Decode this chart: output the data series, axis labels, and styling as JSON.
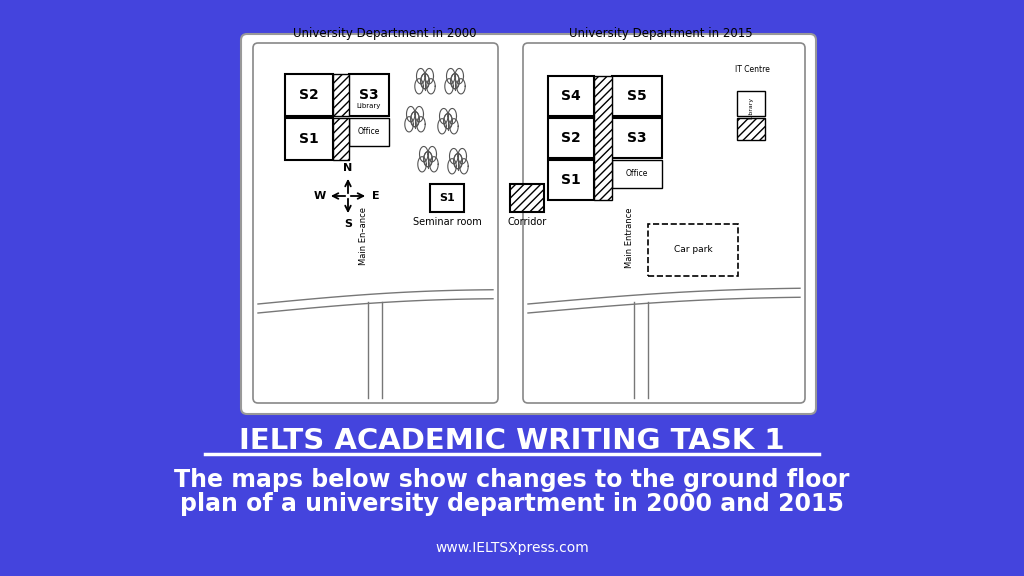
{
  "bg_blue": "#4444dd",
  "title1": "University Department in 2000",
  "title2": "University Department in 2015",
  "main_title": "IELTS ACADEMIC WRITING TASK 1",
  "subtitle_line1": "The maps below show changes to the ground floor",
  "subtitle_line2": "plan of a university department in 2000 and 2015",
  "website": "www.IELTSXpress.com"
}
